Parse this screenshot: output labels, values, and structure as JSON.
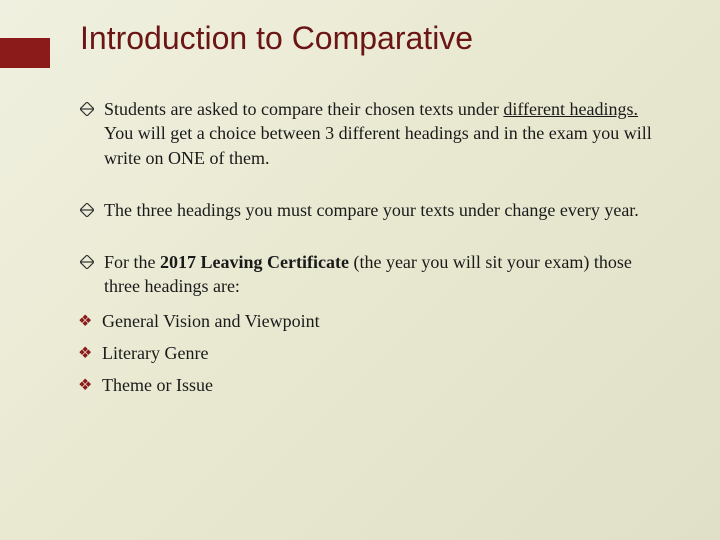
{
  "slide": {
    "title": "Introduction to Comparative",
    "title_color": "#6B1515",
    "accent_color": "#8B1A1A",
    "background_gradient": [
      "#f0f0e0",
      "#e8e8d0",
      "#e0e0c8"
    ],
    "title_fontsize": 32,
    "body_fontsize": 18,
    "bullets": [
      {
        "type": "diamond",
        "segments": [
          {
            "text": "Students are asked to compare their chosen texts under ",
            "style": "normal"
          },
          {
            "text": "different headings.",
            "style": "underline"
          },
          {
            "text": " You will get a choice between 3 different headings and in the exam you will write on ONE of them.",
            "style": "normal"
          }
        ]
      },
      {
        "type": "diamond",
        "segments": [
          {
            "text": "The three headings you must compare your texts under change every year.",
            "style": "normal"
          }
        ]
      },
      {
        "type": "diamond",
        "segments": [
          {
            "text": "For the ",
            "style": "normal"
          },
          {
            "text": "2017 Leaving Certificate",
            "style": "bold"
          },
          {
            "text": " (the year you will sit your exam) those three headings are:",
            "style": "normal"
          }
        ]
      },
      {
        "type": "clover",
        "segments": [
          {
            "text": "General Vision and Viewpoint",
            "style": "normal"
          }
        ]
      },
      {
        "type": "clover",
        "segments": [
          {
            "text": "Literary Genre",
            "style": "normal"
          }
        ]
      },
      {
        "type": "clover",
        "segments": [
          {
            "text": "Theme or Issue",
            "style": "normal"
          }
        ]
      }
    ]
  }
}
